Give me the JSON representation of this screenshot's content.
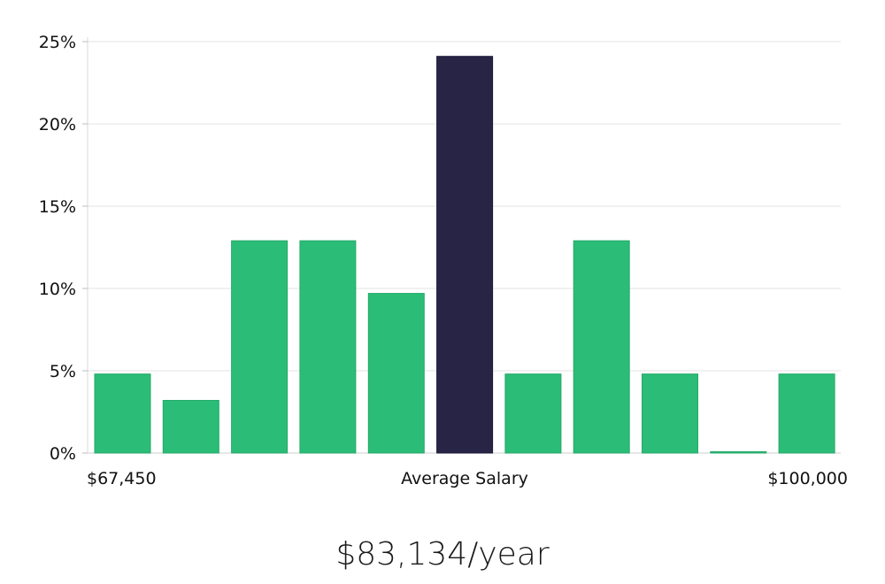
{
  "chart_data": {
    "type": "bar",
    "title": "",
    "xlabel": "Average Salary",
    "ylabel": "",
    "x_min_label": "$67,450",
    "x_max_label": "$100,000",
    "ylim": [
      0,
      25
    ],
    "yticks": [
      0,
      5,
      10,
      15,
      20,
      25
    ],
    "ytick_labels": [
      "0%",
      "5%",
      "10%",
      "15%",
      "20%",
      "25%"
    ],
    "grid": true,
    "values": [
      4.8,
      3.2,
      12.9,
      12.9,
      9.7,
      24.1,
      4.8,
      12.9,
      4.8,
      0.0,
      4.8
    ],
    "highlight_index": 5,
    "bar_color": "#2bbd77",
    "highlight_color": "#282445"
  },
  "summary": {
    "salary": "$83,134/year"
  }
}
